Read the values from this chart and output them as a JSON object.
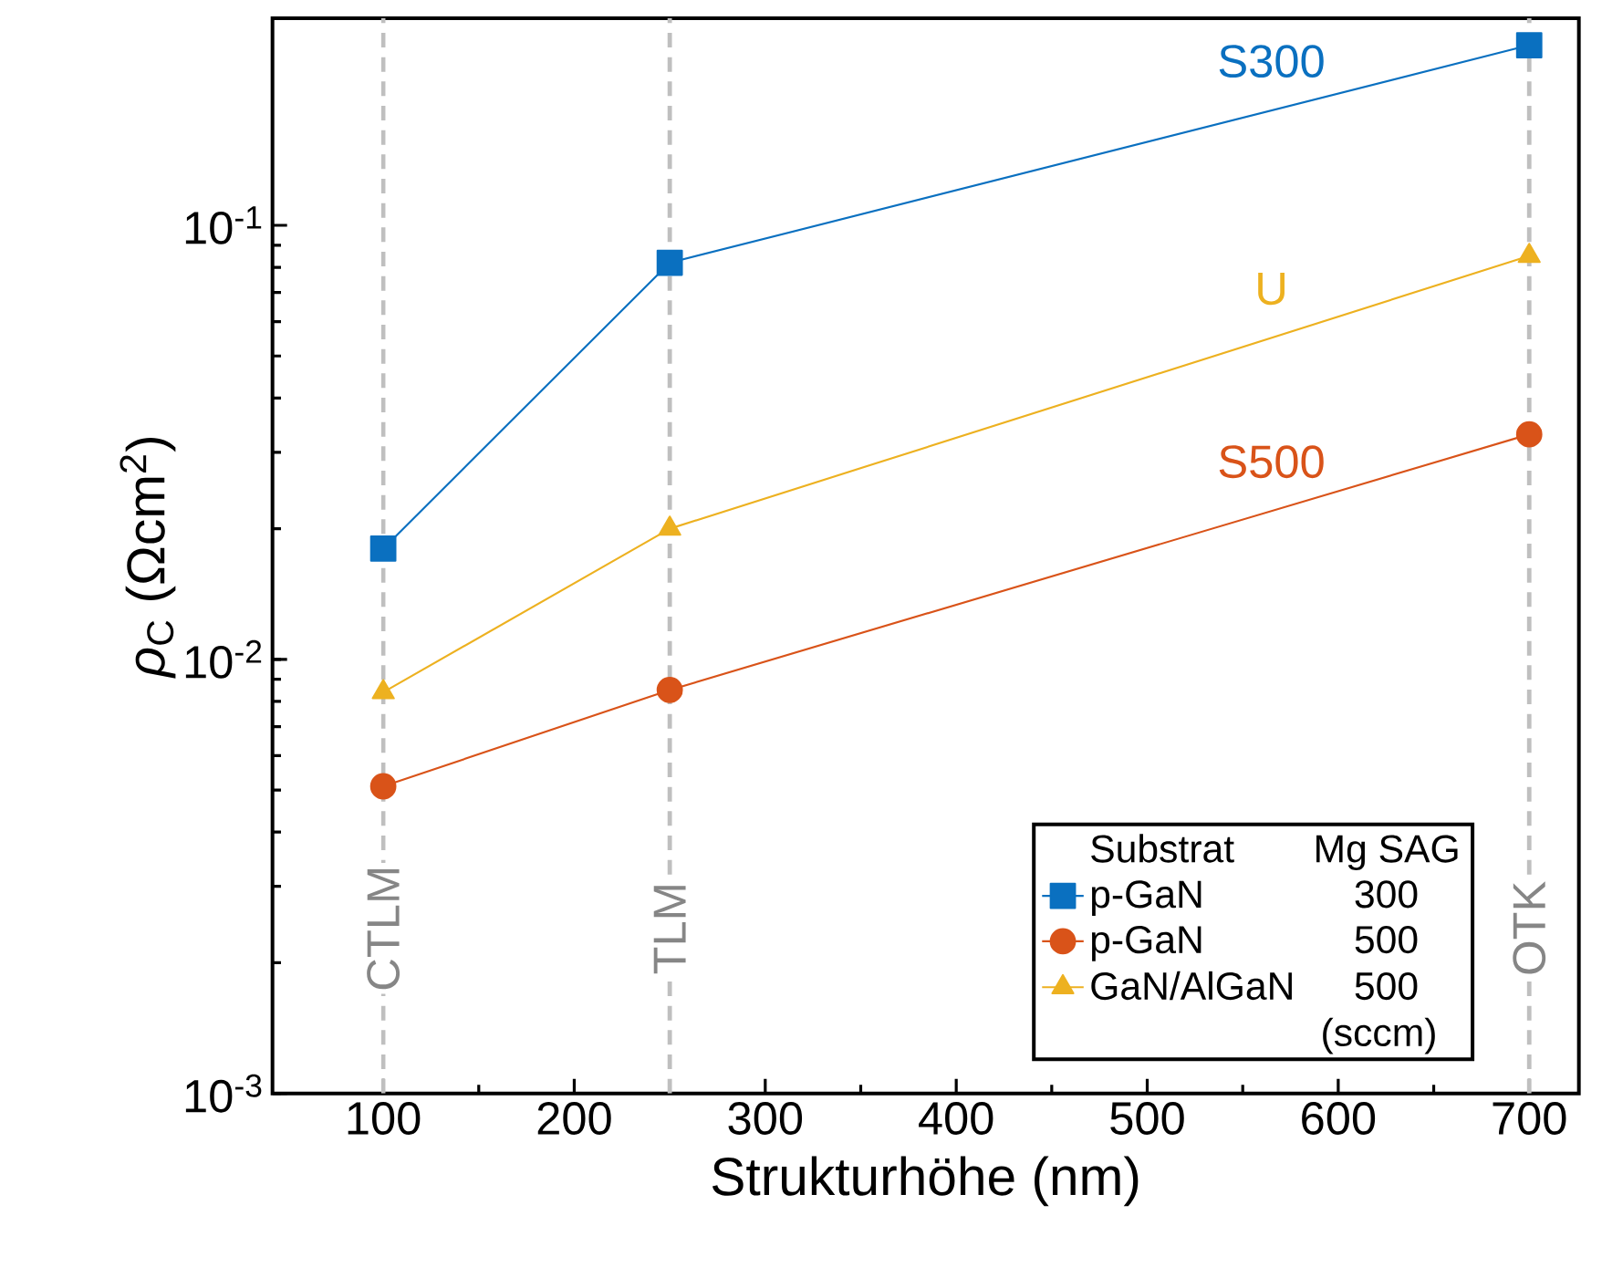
{
  "chart_data": {
    "type": "line",
    "xlabel": "Strukturhöhe (nm)",
    "ylabel": "*ρ*$_{C}$ (Ωcm$^{2}$)",
    "x": [
      100,
      250,
      700
    ],
    "series": [
      {
        "name": "p-GaN",
        "color": "#0a70c0",
        "marker": "square",
        "values": [
          0.018,
          0.082,
          0.26
        ]
      },
      {
        "name": "p-GaN",
        "color": "#d95319",
        "marker": "circle",
        "values": [
          0.0051,
          0.0085,
          0.033
        ]
      },
      {
        "name": "GaN/AlGaN",
        "color": "#edb120",
        "marker": "triangle",
        "values": [
          0.0084,
          0.02,
          0.085
        ]
      }
    ],
    "log": "y",
    "line_style": "solid",
    "grid": false,
    "legend": "bottom right",
    "xlim": [
      42,
      726
    ],
    "ylim": [
      0.001,
      0.3
    ],
    "xticks": [
      100,
      200,
      300,
      400,
      500,
      600,
      700
    ],
    "yticks": [
      {
        "value": 0.001,
        "label": "10$^{-3}$"
      },
      {
        "value": 0.01,
        "label": "10$^{-2}$"
      },
      {
        "value": 0.1,
        "label": "10$^{-1}$"
      }
    ],
    "ref_lines": [
      {
        "axis": "x",
        "value": 100,
        "label": "CTLM",
        "color": "#bfbfbf",
        "line_style": "dashed"
      },
      {
        "axis": "x",
        "value": 250,
        "label": "TLM",
        "color": "#bfbfbf",
        "line_style": "dashed"
      },
      {
        "axis": "x",
        "value": 700,
        "label": "OTK",
        "color": "#bfbfbf",
        "line_style": "dashed"
      }
    ],
    "annotations": [
      "S300",
      "S500",
      "U",
      "Substrat",
      "Mg SAG",
      "300",
      "500",
      "500",
      "(sccm)"
    ]
  }
}
